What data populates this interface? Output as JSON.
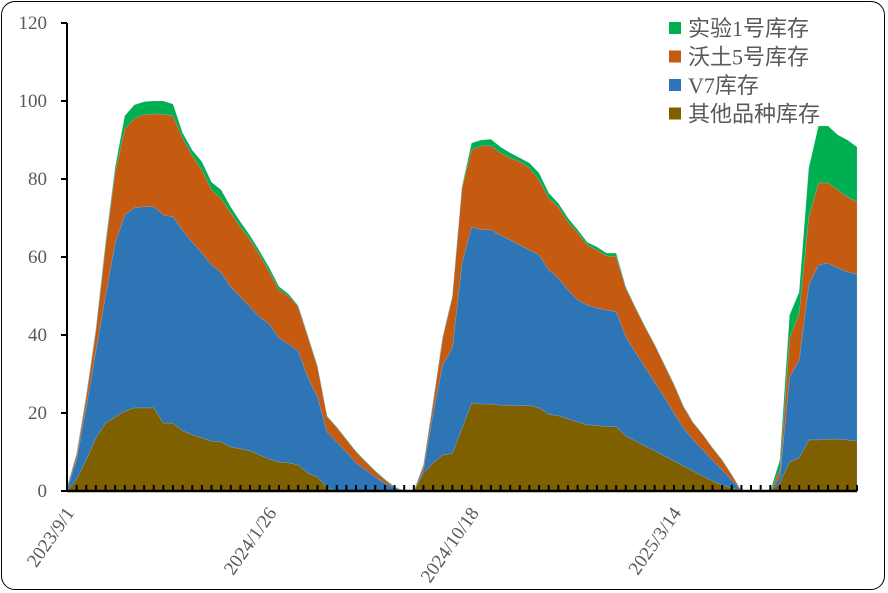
{
  "chart_data": {
    "type": "area",
    "stacked": true,
    "title": "",
    "xlabel": "",
    "ylabel": "",
    "ylim": [
      0,
      120
    ],
    "yticks": [
      0,
      20,
      40,
      60,
      80,
      100,
      120
    ],
    "grid": false,
    "legend_placement": "top-right",
    "x_tick_labels": [
      {
        "index": 0,
        "label": "2023/9/1"
      },
      {
        "index": 21,
        "label": "2024/1/26"
      },
      {
        "index": 42,
        "label": "2024/10/18"
      },
      {
        "index": 63,
        "label": "2025/3/14"
      }
    ],
    "point_count": 83,
    "series": [
      {
        "name": "其他品种库存",
        "color": "#7F6000",
        "values": [
          0,
          3,
          8,
          13.6,
          17.4,
          19,
          20.5,
          21.3,
          21.3,
          21.3,
          17.4,
          17.4,
          15.4,
          14.4,
          13.6,
          12.8,
          12.6,
          11.3,
          10.8,
          10.3,
          9.2,
          8.2,
          7.4,
          7.2,
          6.7,
          4.6,
          3.6,
          0.8,
          0,
          0,
          0,
          0,
          0,
          0,
          0,
          0,
          0,
          4.6,
          7.2,
          9.2,
          9.7,
          16,
          22.6,
          22.3,
          22.3,
          22,
          22,
          21.9,
          21.9,
          21.3,
          19.7,
          19.3,
          18.5,
          17.7,
          17,
          16.8,
          16.5,
          16.5,
          14.1,
          12.8,
          11.5,
          10.3,
          9,
          7.7,
          6.4,
          5.1,
          3.8,
          2.6,
          1.5,
          0.8,
          0,
          0,
          0,
          0,
          2,
          7.4,
          8.5,
          13.1,
          13.1,
          13.3,
          13.3,
          13.1,
          12.8
        ]
      },
      {
        "name": "V7库存",
        "color": "#2E75B6",
        "values": [
          0.5,
          5,
          13.5,
          22.4,
          32.6,
          44.6,
          50.3,
          51.3,
          51.6,
          51.6,
          53.4,
          52.9,
          51.4,
          49.4,
          47.4,
          45.2,
          43.4,
          41,
          39,
          36.9,
          35.4,
          34.6,
          31.8,
          30.5,
          29.2,
          24.6,
          20.5,
          14.3,
          12.6,
          10,
          7.2,
          5.4,
          3.6,
          2,
          0.8,
          0,
          0,
          0.8,
          12.8,
          23.1,
          27,
          42.4,
          45.1,
          44.7,
          44.7,
          43.6,
          42.4,
          41.1,
          39.9,
          39.2,
          37,
          35.3,
          33,
          31.3,
          30.7,
          30.1,
          29.9,
          29.5,
          25.4,
          22.8,
          20.3,
          17.6,
          15.1,
          12.3,
          9.7,
          8,
          6.7,
          5.3,
          3.9,
          2,
          0,
          0,
          0,
          0,
          1.6,
          21.8,
          25.1,
          39.7,
          44.9,
          45.1,
          43.9,
          43.1,
          42.8
        ]
      },
      {
        "name": "沃土5号库存",
        "color": "#C55A11",
        "values": [
          0.3,
          1.2,
          2.5,
          5,
          12.6,
          18.2,
          22,
          23,
          23.6,
          23.8,
          25.8,
          25.9,
          23.7,
          22.2,
          21.3,
          19.2,
          19,
          19,
          17.9,
          17.2,
          15.9,
          13.4,
          12.3,
          12.3,
          11.3,
          10.3,
          7.7,
          3.9,
          3.6,
          3.1,
          2.8,
          2,
          1.4,
          0.8,
          0.2,
          0,
          0,
          1.1,
          2.6,
          6.9,
          13,
          19.3,
          19.7,
          21.5,
          21.5,
          21.1,
          21,
          21.4,
          21,
          19.2,
          18.4,
          18.2,
          17.5,
          17.2,
          15.4,
          14.9,
          13.9,
          14.1,
          12.5,
          11.3,
          10.2,
          9.5,
          8.2,
          7.2,
          5.4,
          4.3,
          3.9,
          3.1,
          2.5,
          1.3,
          0,
          0,
          0,
          0,
          1.8,
          10,
          12,
          17.5,
          21,
          20.6,
          20,
          19.2,
          18.5
        ]
      },
      {
        "name": "实验1号库存",
        "color": "#00B050",
        "values": [
          0.2,
          0.3,
          0.5,
          0.5,
          0.9,
          1.2,
          3.4,
          3.4,
          3.3,
          3.3,
          3.4,
          3,
          1.3,
          1.4,
          2.1,
          2,
          2.2,
          1.5,
          1.3,
          1.1,
          1,
          1,
          0.9,
          0.5,
          0.3,
          0.3,
          0.2,
          0.2,
          0.2,
          0.2,
          0.2,
          0.2,
          0.2,
          0.2,
          0.1,
          0,
          0,
          0.2,
          0.2,
          0.3,
          0.3,
          0.3,
          1.8,
          1.5,
          1.7,
          1.5,
          1.3,
          1,
          1.3,
          1.8,
          1.3,
          1,
          1,
          0.8,
          0.7,
          0.8,
          0.7,
          0.9,
          0.3,
          0.2,
          0.2,
          0.2,
          0.2,
          0.2,
          0.2,
          0.2,
          0.1,
          0.1,
          0.1,
          0.1,
          0,
          0,
          0,
          0,
          2.5,
          5.9,
          5.4,
          12.5,
          14.6,
          14.6,
          14.1,
          14.6,
          14.1
        ]
      }
    ],
    "legend_order": [
      "实验1号库存",
      "沃土5号库存",
      "V7库存",
      "其他品种库存"
    ]
  }
}
